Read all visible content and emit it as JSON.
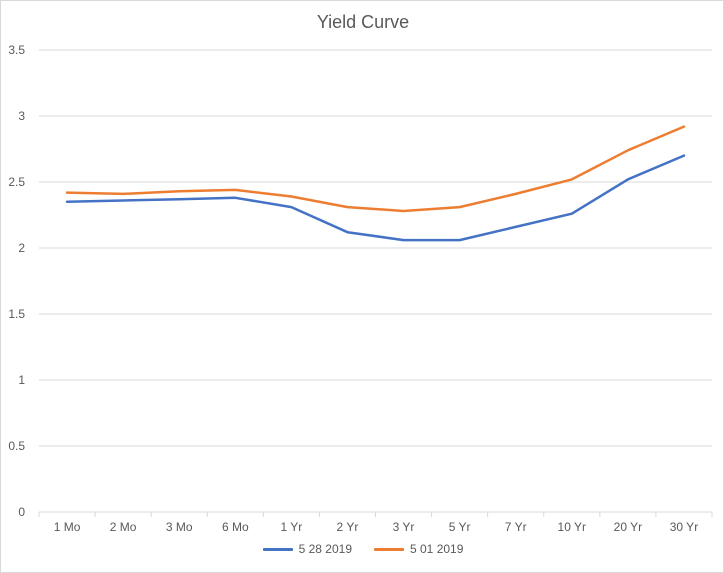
{
  "chart_data": {
    "type": "line",
    "title": "Yield Curve",
    "xlabel": "",
    "ylabel": "",
    "categories": [
      "1 Mo",
      "2 Mo",
      "3 Mo",
      "6 Mo",
      "1 Yr",
      "2 Yr",
      "3 Yr",
      "5 Yr",
      "7 Yr",
      "10 Yr",
      "20 Yr",
      "30 Yr"
    ],
    "ylim": [
      0,
      3.5
    ],
    "yticks": [
      "0",
      "0.5",
      "1",
      "1.5",
      "2",
      "2.5",
      "3",
      "3.5"
    ],
    "grid": true,
    "legend_position": "bottom",
    "series": [
      {
        "name": "5 28 2019",
        "color": "#4472c4",
        "values": [
          2.35,
          2.36,
          2.37,
          2.38,
          2.31,
          2.12,
          2.06,
          2.06,
          2.16,
          2.26,
          2.52,
          2.7
        ]
      },
      {
        "name": "5 01 2019",
        "color": "#ed7d31",
        "values": [
          2.42,
          2.41,
          2.43,
          2.44,
          2.39,
          2.31,
          2.28,
          2.31,
          2.41,
          2.52,
          2.74,
          2.92
        ]
      }
    ]
  }
}
